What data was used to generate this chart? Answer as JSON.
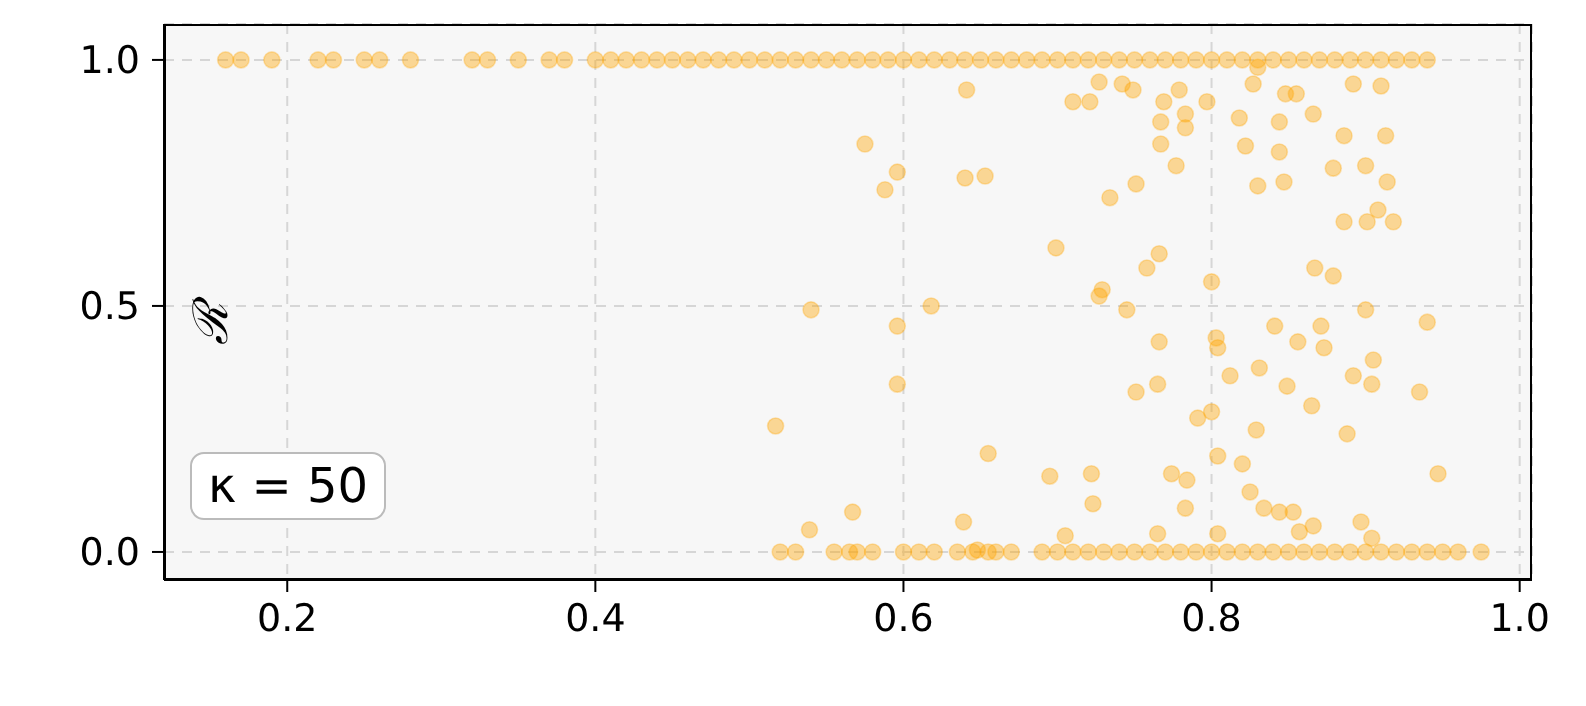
{
  "chart_data": {
    "type": "scatter",
    "ylabel": "ℛ",
    "annotations": [
      "κ = 50"
    ],
    "xlim": [
      0.12,
      1.008
    ],
    "ylim": [
      -0.057,
      1.073
    ],
    "xticks": [
      0.2,
      0.4,
      0.6,
      0.8,
      {
        "value": 1,
        "label": "1.0"
      }
    ],
    "yticks": [
      {
        "value": 0,
        "label": "0.0"
      },
      0.5,
      {
        "value": 1,
        "label": "1.0"
      }
    ],
    "grid": true,
    "marker": "circle",
    "series": [
      {
        "color": "#ffa500",
        "x": [
          0.16,
          0.17,
          0.19,
          0.22,
          0.23,
          0.25,
          0.26,
          0.28,
          0.32,
          0.33,
          0.35,
          0.37,
          0.38,
          0.4,
          0.41,
          0.42,
          0.43,
          0.44,
          0.45,
          0.46,
          0.47,
          0.48,
          0.49,
          0.5,
          0.51,
          0.52,
          0.53,
          0.54,
          0.55,
          0.56,
          0.57,
          0.58,
          0.59,
          0.6,
          0.61,
          0.62,
          0.63,
          0.64,
          0.65,
          0.66,
          0.67,
          0.68,
          0.69,
          0.7,
          0.71,
          0.72,
          0.73,
          0.74,
          0.75,
          0.76,
          0.77,
          0.78,
          0.79,
          0.8,
          0.81,
          0.82,
          0.83,
          0.84,
          0.85,
          0.86,
          0.87,
          0.88,
          0.89,
          0.9,
          0.91,
          0.92,
          0.93,
          0.94,
          0.83,
          0.641,
          0.575,
          0.596,
          0.588,
          0.64,
          0.653,
          0.699,
          0.734,
          0.751,
          0.71,
          0.721,
          0.727,
          0.742,
          0.749,
          0.769,
          0.767,
          0.767,
          0.783,
          0.783,
          0.779,
          0.777,
          0.766,
          0.758,
          0.797,
          0.818,
          0.822,
          0.827,
          0.844,
          0.844,
          0.848,
          0.855,
          0.866,
          0.83,
          0.847,
          0.886,
          0.879,
          0.9,
          0.913,
          0.914,
          0.886,
          0.901,
          0.908,
          0.918,
          0.892,
          0.91,
          0.867,
          0.879,
          0.8,
          0.729,
          0.618,
          0.596,
          0.596,
          0.727,
          0.745,
          0.766,
          0.765,
          0.751,
          0.803,
          0.804,
          0.812,
          0.831,
          0.841,
          0.856,
          0.871,
          0.873,
          0.9,
          0.94,
          0.849,
          0.865,
          0.892,
          0.905,
          0.904,
          0.935,
          0.8,
          0.791,
          0.829,
          0.888,
          0.655,
          0.804,
          0.82,
          0.695,
          0.722,
          0.723,
          0.774,
          0.784,
          0.783,
          0.825,
          0.834,
          0.844,
          0.853,
          0.947,
          0.567,
          0.639,
          0.648,
          0.705,
          0.765,
          0.804,
          0.897,
          0.904,
          0.857,
          0.866,
          0.54,
          0.517,
          0.539,
          0.52,
          0.53,
          0.555,
          0.565,
          0.57,
          0.58,
          0.6,
          0.61,
          0.62,
          0.635,
          0.645,
          0.655,
          0.66,
          0.67,
          0.69,
          0.7,
          0.71,
          0.72,
          0.73,
          0.74,
          0.75,
          0.76,
          0.77,
          0.78,
          0.79,
          0.8,
          0.81,
          0.82,
          0.83,
          0.84,
          0.85,
          0.86,
          0.87,
          0.88,
          0.89,
          0.9,
          0.91,
          0.92,
          0.93,
          0.94,
          0.95,
          0.96,
          0.975
        ],
        "values": [
          1,
          1,
          1,
          1,
          1,
          1,
          1,
          1,
          1,
          1,
          1,
          1,
          1,
          1,
          1,
          1,
          1,
          1,
          1,
          1,
          1,
          1,
          1,
          1,
          1,
          1,
          1,
          1,
          1,
          1,
          1,
          1,
          1,
          1,
          1,
          1,
          1,
          1,
          1,
          1,
          1,
          1,
          1,
          1,
          1,
          1,
          1,
          1,
          1,
          1,
          1,
          1,
          1,
          1,
          1,
          1,
          1,
          1,
          1,
          1,
          1,
          1,
          1,
          1,
          1,
          1,
          1,
          1,
          0.985,
          0.939,
          0.829,
          0.772,
          0.736,
          0.76,
          0.764,
          0.618,
          0.72,
          0.748,
          0.915,
          0.915,
          0.955,
          0.951,
          0.939,
          0.915,
          0.874,
          0.829,
          0.89,
          0.862,
          0.939,
          0.785,
          0.606,
          0.577,
          0.915,
          0.882,
          0.825,
          0.951,
          0.874,
          0.813,
          0.931,
          0.931,
          0.89,
          0.744,
          0.752,
          0.846,
          0.78,
          0.785,
          0.846,
          0.752,
          0.671,
          0.671,
          0.695,
          0.671,
          0.951,
          0.947,
          0.577,
          0.561,
          0.549,
          0.533,
          0.5,
          0.459,
          0.341,
          0.52,
          0.492,
          0.427,
          0.341,
          0.325,
          0.435,
          0.415,
          0.358,
          0.374,
          0.459,
          0.427,
          0.459,
          0.415,
          0.492,
          0.467,
          0.337,
          0.297,
          0.358,
          0.39,
          0.341,
          0.325,
          0.285,
          0.272,
          0.248,
          0.24,
          0.2,
          0.195,
          0.179,
          0.154,
          0.159,
          0.098,
          0.159,
          0.146,
          0.089,
          0.122,
          0.089,
          0.081,
          0.081,
          0.159,
          0.081,
          0.061,
          0.004,
          0.033,
          0.037,
          0.037,
          0.061,
          0.028,
          0.041,
          0.053,
          0.492,
          0.256,
          0.045,
          0,
          0,
          0,
          0,
          0,
          0,
          0,
          0,
          0,
          0,
          0,
          0,
          0,
          0,
          0,
          0,
          0,
          0,
          0,
          0,
          0,
          0,
          0,
          0,
          0,
          0,
          0,
          0,
          0,
          0,
          0,
          0,
          0,
          0,
          0,
          0,
          0,
          0,
          0,
          0,
          0,
          0,
          0
        ]
      }
    ]
  }
}
